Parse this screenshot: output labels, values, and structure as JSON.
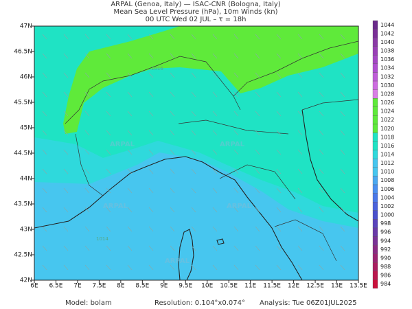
{
  "header": {
    "lines": [
      "ARPAL (Genoa, Italy)  —  ISAC-CNR (Bologna, Italy)",
      "Mean Sea Level Pressure (hPa), 10m Winds (kn)",
      "00 UTC Wed 02 JUL  –  τ = 18h"
    ]
  },
  "map": {
    "lon_labels": [
      "6E",
      "6.5E",
      "7E",
      "7.5E",
      "8E",
      "8.5E",
      "9E",
      "9.5E",
      "10E",
      "10.5E",
      "11E",
      "11.5E",
      "12E",
      "12.5E",
      "13E",
      "13.5E"
    ],
    "lat_labels": [
      "47N",
      "46.5N",
      "46N",
      "45.5N",
      "45N",
      "44.5N",
      "44N",
      "43.5N",
      "43N",
      "42.5N",
      "42N"
    ],
    "watermark": "ARPAL",
    "contour_labels": [
      "1016",
      "1014"
    ]
  },
  "colorbar": {
    "labels": [
      1044,
      1042,
      1040,
      1038,
      1036,
      1034,
      1032,
      1030,
      1028,
      1026,
      1024,
      1022,
      1020,
      1018,
      1016,
      1014,
      1012,
      1010,
      1008,
      1006,
      1004,
      1002,
      1000,
      998,
      996,
      994,
      992,
      990,
      988,
      986,
      984
    ]
  },
  "footer": {
    "model": "Model: bolam",
    "resolution": "Resolution: 0.104°x0.074°",
    "analysis": "Analysis: Tue 06Z01JUL2025"
  }
}
